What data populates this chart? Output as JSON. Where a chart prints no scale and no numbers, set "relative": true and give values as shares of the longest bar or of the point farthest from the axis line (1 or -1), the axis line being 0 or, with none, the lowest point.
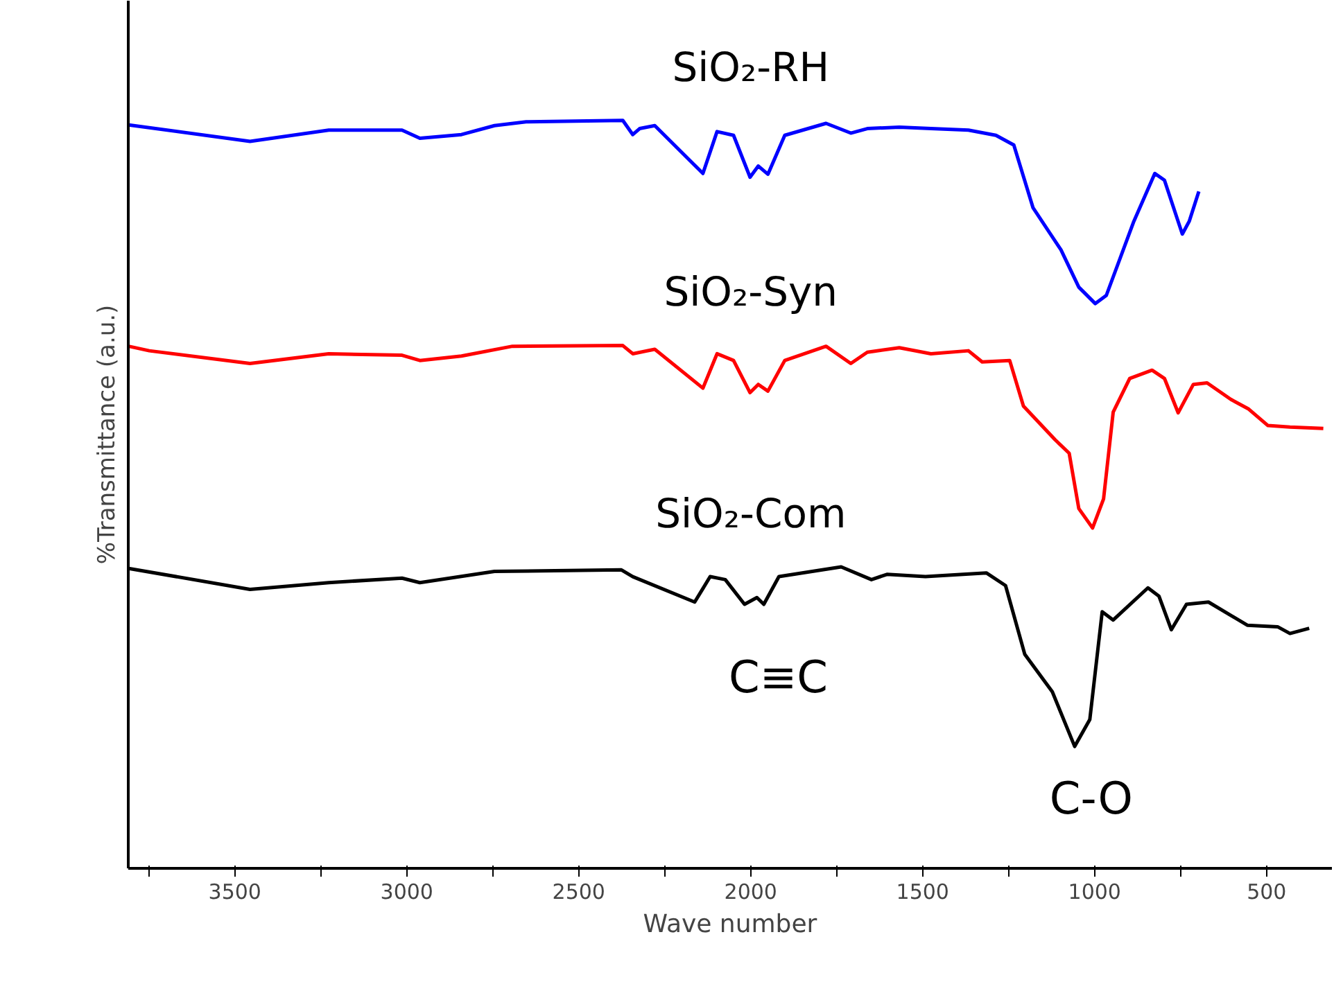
{
  "chart_data": {
    "type": "line",
    "relative": true,
    "xlabel": "Wave number",
    "ylabel": "%Transmittance (a.u.)",
    "xlim": [
      3810,
      310
    ],
    "xticks": [
      {
        "value": 3750,
        "label": null
      },
      3500,
      {
        "value": 3250,
        "label": null
      },
      3000,
      {
        "value": 2750,
        "label": null
      },
      2500,
      {
        "value": 2250,
        "label": null
      },
      2000,
      {
        "value": 1750,
        "label": null
      },
      1500,
      {
        "value": 1250,
        "label": null
      },
      1000,
      {
        "value": 750,
        "label": null
      },
      500
    ],
    "grid": false,
    "marker": "none",
    "line_style": "solid",
    "series": [
      {
        "name": "SiO₂-RH",
        "color": "#0000ff",
        "x": [
          3809,
          3456,
          3227,
          3014,
          2962,
          2841,
          2745,
          2653,
          2372,
          2343,
          2323,
          2279,
          2139,
          2098,
          2050,
          2002,
          1978,
          1950,
          1901,
          1781,
          1709,
          1661,
          1568,
          1476,
          1367,
          1287,
          1235,
          1179,
          1098,
          1046,
          998,
          966,
          886,
          825,
          797,
          745,
          725,
          697
        ],
        "values": [
          0.994,
          0.972,
          0.987,
          0.987,
          0.976,
          0.981,
          0.993,
          0.998,
          1.0,
          0.981,
          0.989,
          0.993,
          0.929,
          0.985,
          0.98,
          0.924,
          0.939,
          0.928,
          0.98,
          0.996,
          0.983,
          0.989,
          0.991,
          0.989,
          0.987,
          0.98,
          0.967,
          0.883,
          0.827,
          0.777,
          0.755,
          0.766,
          0.865,
          0.929,
          0.92,
          0.848,
          0.865,
          0.905
        ]
      },
      {
        "name": "SiO₂-Syn",
        "color": "#ff0000",
        "x": [
          3809,
          3749,
          3456,
          3227,
          3014,
          2962,
          2841,
          2693,
          2372,
          2343,
          2279,
          2139,
          2098,
          2050,
          2002,
          1978,
          1950,
          1901,
          1781,
          1709,
          1661,
          1568,
          1476,
          1367,
          1327,
          1247,
          1207,
          1115,
          1074,
          1046,
          1006,
          974,
          946,
          898,
          833,
          797,
          757,
          713,
          673,
          604,
          552,
          496,
          432,
          335
        ],
        "values": [
          0.698,
          0.692,
          0.675,
          0.688,
          0.686,
          0.679,
          0.685,
          0.698,
          0.699,
          0.688,
          0.694,
          0.642,
          0.688,
          0.679,
          0.636,
          0.647,
          0.638,
          0.679,
          0.698,
          0.675,
          0.69,
          0.696,
          0.688,
          0.692,
          0.677,
          0.679,
          0.618,
          0.573,
          0.555,
          0.481,
          0.455,
          0.494,
          0.61,
          0.655,
          0.666,
          0.655,
          0.609,
          0.647,
          0.649,
          0.627,
          0.614,
          0.592,
          0.59,
          0.588
        ]
      },
      {
        "name": "SiO₂-Com",
        "color": "#000000",
        "x": [
          3809,
          3456,
          3227,
          3014,
          2962,
          2745,
          2376,
          2343,
          2163,
          2118,
          2074,
          2018,
          1982,
          1962,
          1918,
          1737,
          1649,
          1604,
          1492,
          1315,
          1259,
          1203,
          1123,
          1058,
          1014,
          978,
          946,
          845,
          813,
          777,
          733,
          669,
          556,
          468,
          432,
          376
        ],
        "values": [
          0.401,
          0.373,
          0.382,
          0.388,
          0.382,
          0.397,
          0.399,
          0.39,
          0.356,
          0.39,
          0.386,
          0.353,
          0.362,
          0.353,
          0.39,
          0.403,
          0.386,
          0.393,
          0.39,
          0.395,
          0.378,
          0.286,
          0.236,
          0.163,
          0.199,
          0.343,
          0.332,
          0.375,
          0.364,
          0.319,
          0.353,
          0.356,
          0.325,
          0.323,
          0.314,
          0.321
        ]
      }
    ],
    "annotations": [
      "C≡C",
      "C-O"
    ]
  }
}
